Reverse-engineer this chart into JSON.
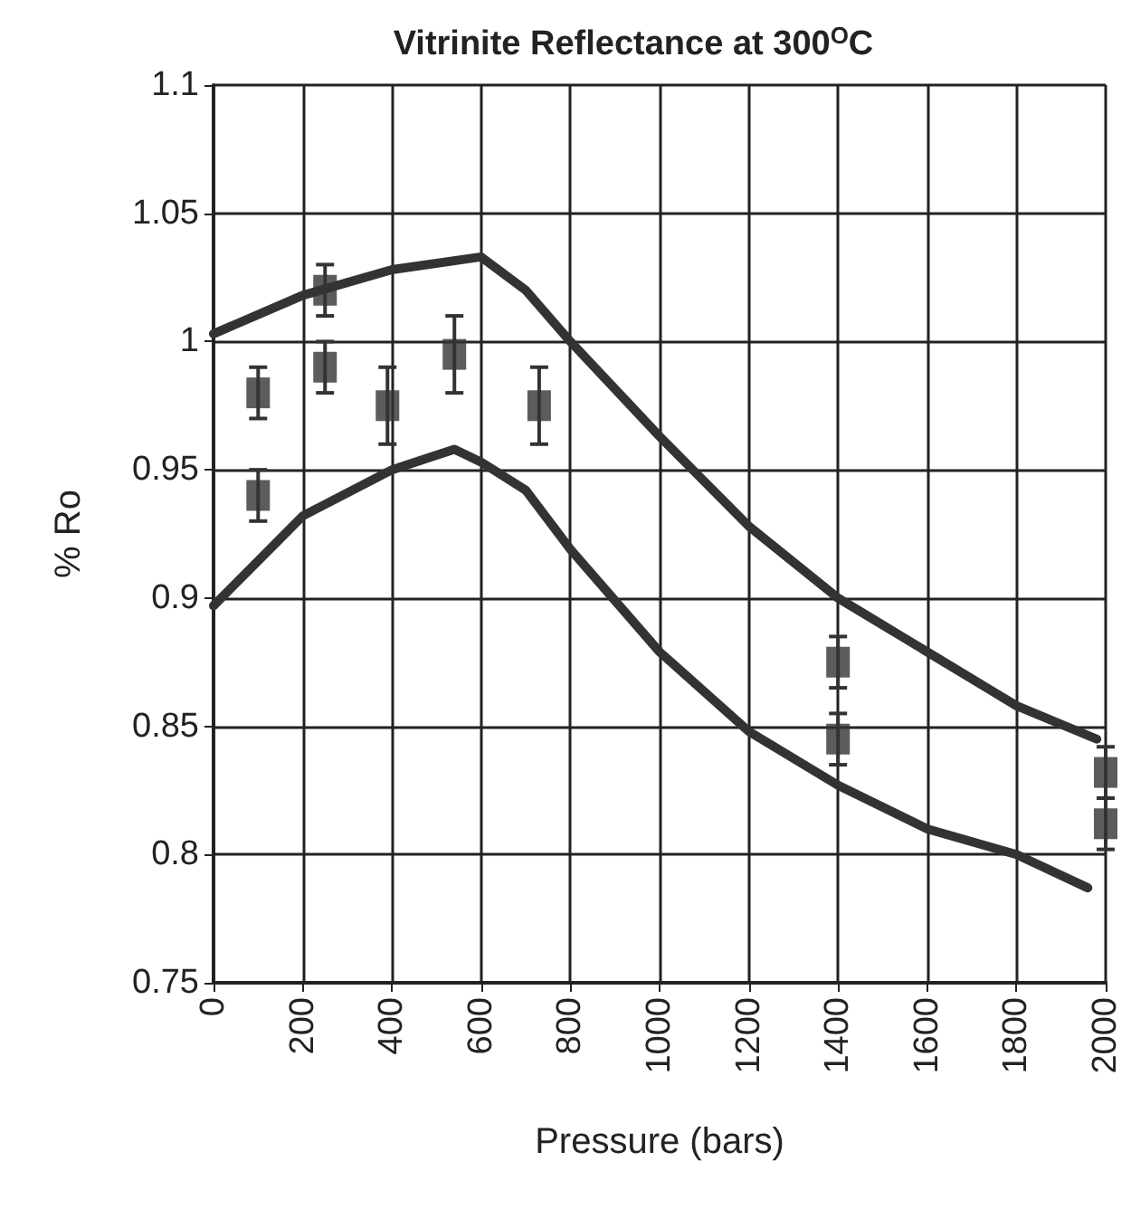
{
  "chart_data": {
    "type": "line",
    "title": "Vitrinite Reflectance at 300$^{O}$C",
    "xlabel": "Pressure (bars)",
    "ylabel": "% Ro",
    "xlim": [
      0,
      2000
    ],
    "xticks": [
      0,
      200,
      400,
      600,
      800,
      1000,
      1200,
      1400,
      1600,
      1800,
      2000
    ],
    "ylim": [
      0.75,
      1.1
    ],
    "yticks": [
      0.75,
      0.8,
      0.85,
      0.9,
      0.95,
      1,
      1.05,
      1.1
    ],
    "grid": true,
    "line_style": "solid",
    "series": [
      {
        "marker": "none",
        "color": "#333333",
        "x": [
          0,
          200,
          400,
          600,
          700,
          800,
          1000,
          1200,
          1400,
          1600,
          1800,
          1980
        ],
        "values": [
          1.003,
          1.018,
          1.028,
          1.033,
          1.02,
          1.0,
          0.963,
          0.928,
          0.9,
          0.879,
          0.858,
          0.845
        ]
      },
      {
        "marker": "none",
        "color": "#333333",
        "x": [
          0,
          200,
          400,
          540,
          600,
          700,
          800,
          1000,
          1200,
          1400,
          1600,
          1800,
          1960
        ],
        "values": [
          0.897,
          0.932,
          0.95,
          0.958,
          0.953,
          0.942,
          0.919,
          0.879,
          0.848,
          0.827,
          0.81,
          0.8,
          0.787
        ]
      },
      {
        "type": "scatter",
        "marker": "square",
        "color": "#333333",
        "x": [
          100,
          100,
          250,
          250,
          390,
          540,
          730,
          1400,
          1400,
          2000,
          2000
        ],
        "values": [
          0.98,
          0.94,
          1.02,
          0.99,
          0.975,
          0.995,
          0.975,
          0.875,
          0.845,
          0.832,
          0.812
        ],
        "errors": [
          0.01,
          0.01,
          0.01,
          0.01,
          0.015,
          0.015,
          0.015,
          0.01,
          0.01,
          0.01,
          0.01
        ]
      }
    ]
  }
}
